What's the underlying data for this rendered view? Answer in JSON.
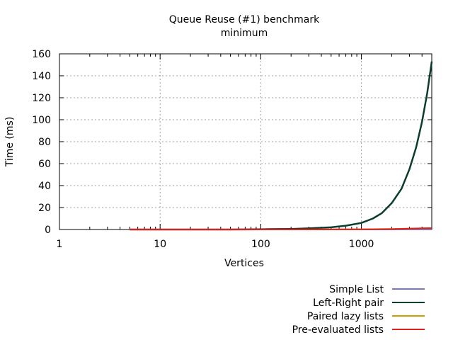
{
  "chart_data": {
    "type": "line",
    "title": "Queue Reuse (#1) benchmark",
    "subtitle": "minimum",
    "xlabel": "Vertices",
    "ylabel": "Time (ms)",
    "xscale": "log",
    "xlim": [
      1,
      5000
    ],
    "ylim": [
      0,
      160
    ],
    "xticks": [
      1,
      10,
      100,
      1000
    ],
    "xtick_labels": [
      "1",
      "10",
      "100",
      "1000"
    ],
    "yticks": [
      0,
      20,
      40,
      60,
      80,
      100,
      120,
      140,
      160
    ],
    "grid": true,
    "legend_position": "bottom-right",
    "series": [
      {
        "name": "Simple List",
        "color": "#7777cc",
        "x": [
          5,
          10,
          50,
          100,
          300,
          1000,
          3000,
          5000
        ],
        "y": [
          0,
          0,
          0,
          0,
          0,
          0,
          0,
          0
        ]
      },
      {
        "name": "Left-Right pair",
        "color": "#0b3d2e",
        "x": [
          5,
          10,
          50,
          100,
          200,
          300,
          500,
          700,
          1000,
          1300,
          1600,
          2000,
          2500,
          3000,
          3500,
          4000,
          4500,
          5000
        ],
        "y": [
          0,
          0,
          0,
          0.2,
          0.5,
          1,
          2,
          3.5,
          6,
          10,
          15,
          24,
          37,
          55,
          75,
          98,
          124,
          153
        ]
      },
      {
        "name": "Paired lazy lists",
        "color": "#c8a000",
        "x": [
          5,
          10,
          100,
          1000,
          3000,
          4000,
          5000
        ],
        "y": [
          0,
          0,
          0,
          0.1,
          0.8,
          1,
          1.2
        ]
      },
      {
        "name": "Pre-evaluated lists",
        "color": "#e02020",
        "x": [
          5,
          10,
          100,
          1000,
          2000,
          3000,
          4000,
          5000
        ],
        "y": [
          0,
          0,
          0,
          0.1,
          0.3,
          0.8,
          1.1,
          1.3
        ]
      }
    ]
  }
}
